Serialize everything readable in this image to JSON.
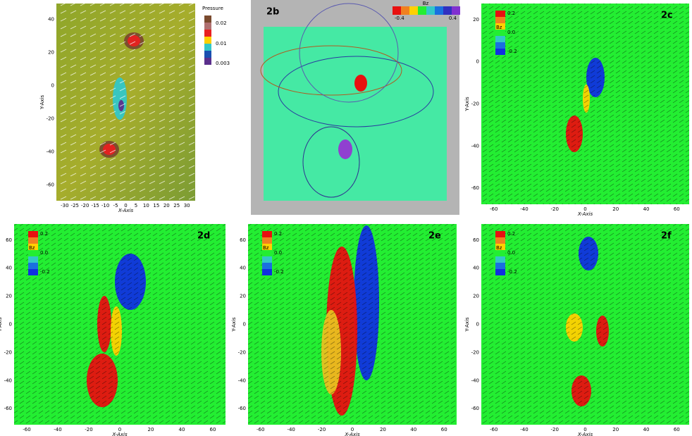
{
  "panels": [
    {
      "x_axis": "X-Axis",
      "y_axis": "Y-Axis",
      "x_ticks": [
        -30,
        -25,
        -20,
        -15,
        -10,
        -5,
        0,
        5,
        10,
        15,
        20,
        25,
        30
      ],
      "y_ticks": [
        40,
        20,
        0,
        -20,
        -40,
        -60
      ],
      "legend": {
        "title": "Pressure",
        "labels": [
          "0.02",
          "0.01",
          "0.003"
        ]
      }
    },
    {
      "label": "2b",
      "legend": {
        "title": "Bz",
        "labels": [
          "-0.4",
          "0.4"
        ]
      }
    },
    {
      "label": "2c",
      "x_axis": "X-Axis",
      "y_axis": "Y-Axis",
      "x_ticks": [
        -60,
        -40,
        -20,
        0,
        20,
        40,
        60
      ],
      "y_ticks": [
        20,
        0,
        -20,
        -40,
        -60
      ],
      "legend": {
        "title": "Bz",
        "labels": [
          "0.2",
          "0.0",
          "-0.2"
        ]
      }
    },
    {
      "label": "2d",
      "x_axis": "X-Axis",
      "y_axis": "Y-Axis",
      "x_ticks": [
        -60,
        -40,
        -20,
        0,
        20,
        40,
        60
      ],
      "y_ticks": [
        60,
        40,
        20,
        0,
        -20,
        -40,
        -60
      ],
      "legend": {
        "title": "Bz",
        "labels": [
          "0.2",
          "0.0",
          "-0.2"
        ]
      }
    },
    {
      "label": "2e",
      "x_axis": "X-Axis",
      "y_axis": "Y-Axis",
      "x_ticks": [
        -60,
        -40,
        -20,
        0,
        20,
        40,
        60
      ],
      "y_ticks": [
        60,
        40,
        20,
        0,
        -20,
        -40,
        -60
      ],
      "legend": {
        "title": "Bz",
        "labels": [
          "0.2",
          "0.0",
          "-0.2"
        ]
      }
    },
    {
      "label": "2f",
      "x_axis": "X-Axis",
      "y_axis": "Y-Axis",
      "x_ticks": [
        -60,
        -40,
        -20,
        0,
        20,
        40,
        60
      ],
      "y_ticks": [
        60,
        40,
        20,
        0,
        -20,
        -40,
        -60
      ],
      "legend": {
        "title": "Bz",
        "labels": [
          "0.2",
          "0.0",
          "-0.2"
        ]
      }
    }
  ]
}
